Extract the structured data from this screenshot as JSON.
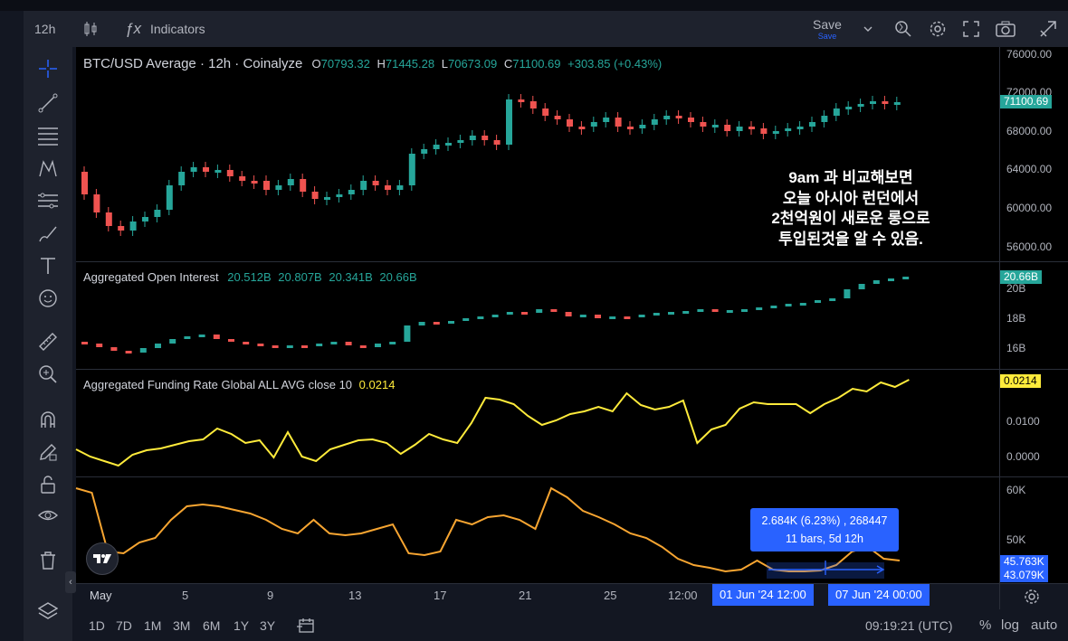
{
  "toolbar": {
    "interval": "12h",
    "indicators_label": "Indicators",
    "save_label": "Save",
    "save_sublabel": "Save"
  },
  "main_pane": {
    "title": "BTC/USD Average · 12h · Coinalyze",
    "o_label": "O",
    "o_value": "70793.32",
    "h_label": "H",
    "h_value": "71445.28",
    "l_label": "L",
    "l_value": "70673.09",
    "c_label": "C",
    "c_value": "71100.69",
    "change": "+303.85 (+0.43%)",
    "price_tag": "71100.69",
    "y_labels": [
      "76000.00",
      "72000.00",
      "68000.00",
      "64000.00",
      "60000.00",
      "56000.00"
    ],
    "annotation": [
      "9am 과 비교해보면",
      "오늘 아시아 런던에서",
      "2천억원이 새로운 롱으로",
      "투입된것을 알 수 있음."
    ]
  },
  "oi_pane": {
    "title": "Aggregated Open Interest",
    "values": [
      "20.512B",
      "20.807B",
      "20.341B",
      "20.66B"
    ],
    "tag": "20.66B",
    "y_labels": [
      "20B",
      "18B",
      "16B"
    ]
  },
  "funding_pane": {
    "title": "Aggregated Funding Rate Global ALL AVG close 10",
    "value": "0.0214",
    "tag": "0.0214",
    "y_labels": [
      "0.0100",
      "0.0000"
    ]
  },
  "fourth_pane": {
    "y_labels": [
      "60K",
      "50K"
    ],
    "tags": [
      "45.763K",
      "43.079K"
    ]
  },
  "measure_tooltip": {
    "line1": "2.684K (6.23%) , 268447",
    "line2": "11 bars, 5d 12h"
  },
  "x_axis": {
    "labels": [
      "May",
      "5",
      "9",
      "13",
      "17",
      "21",
      "25",
      "12:00"
    ],
    "range_start": "01 Jun '24   12:00",
    "range_end": "07 Jun '24   00:00"
  },
  "bottombar": {
    "ranges": [
      "1D",
      "7D",
      "1M",
      "3M",
      "6M",
      "1Y",
      "3Y"
    ],
    "clock": "09:19:21 (UTC)",
    "pct": "%",
    "log": "log",
    "auto": "auto"
  },
  "colors": {
    "up": "#26a69a",
    "down": "#ef5350",
    "funding": "#ffeb3b",
    "orange": "#f7a531",
    "accent": "#2962ff"
  }
}
